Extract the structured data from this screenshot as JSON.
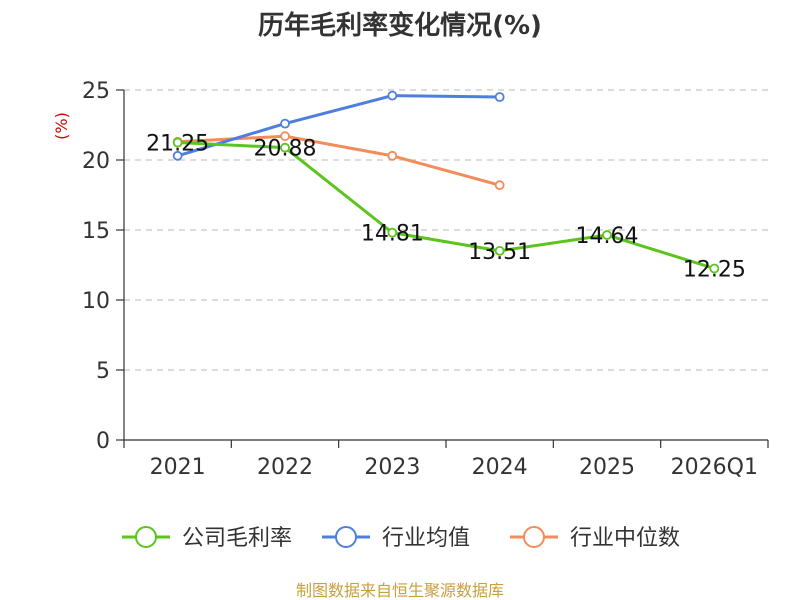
{
  "chart_data": {
    "type": "line",
    "title": "历年毛利率变化情况(%)",
    "ylabel": "(%)",
    "xlabel": "",
    "ylim": [
      0,
      25
    ],
    "yticks": [
      0,
      5,
      10,
      15,
      20,
      25
    ],
    "grid": true,
    "legend_position": "bottom",
    "categories": [
      "2021",
      "2022",
      "2023",
      "2024",
      "2025",
      "2026Q1"
    ],
    "series": [
      {
        "name": "公司毛利率",
        "color": "#5bc41e",
        "values": [
          21.25,
          20.88,
          14.81,
          13.51,
          14.64,
          12.25
        ],
        "labels": [
          "21.25",
          "20.88",
          "14.81",
          "13.51",
          "14.64",
          "12.25"
        ]
      },
      {
        "name": "行业均值",
        "color": "#4f7fdc",
        "values": [
          20.3,
          22.6,
          24.6,
          24.5,
          null,
          null
        ]
      },
      {
        "name": "行业中位数",
        "color": "#f28c5a",
        "values": [
          21.3,
          21.7,
          20.3,
          18.2,
          null,
          null
        ]
      }
    ]
  },
  "source": "制图数据来自恒生聚源数据库"
}
